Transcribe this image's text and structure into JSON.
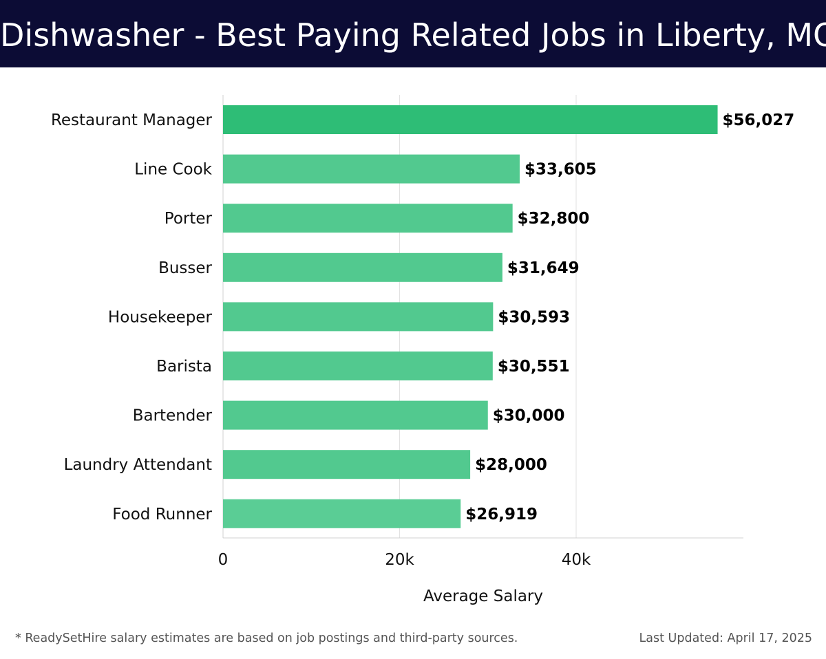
{
  "header": {
    "title": "Dishwasher - Best Paying Related Jobs in Liberty, MO"
  },
  "chart_data": {
    "type": "bar",
    "orientation": "horizontal",
    "categories": [
      "Restaurant Manager",
      "Line Cook",
      "Porter",
      "Busser",
      "Housekeeper",
      "Barista",
      "Bartender",
      "Laundry Attendant",
      "Food Runner"
    ],
    "values": [
      56027,
      33605,
      32800,
      31649,
      30593,
      30551,
      30000,
      28000,
      26919
    ],
    "value_labels": [
      "$56,027",
      "$33,605",
      "$32,800",
      "$31,649",
      "$30,593",
      "$30,551",
      "$30,000",
      "$28,000",
      "$26,919"
    ],
    "xlabel": "Average Salary",
    "xlim": [
      0,
      59000
    ],
    "x_ticks": [
      0,
      20000,
      40000
    ],
    "x_tick_labels": [
      "0",
      "20k",
      "40k"
    ],
    "grid": "vertical",
    "colors": {
      "bar_top": "#2ebd76",
      "bar": "#52c98f",
      "bar_last": "#5acd95",
      "grid": "#e2e2e2",
      "title_bg": "#0c0c35"
    }
  },
  "footer": {
    "note": "* ReadySetHire salary estimates are based on job postings and third-party sources.",
    "last_updated": "Last Updated: April 17, 2025"
  }
}
